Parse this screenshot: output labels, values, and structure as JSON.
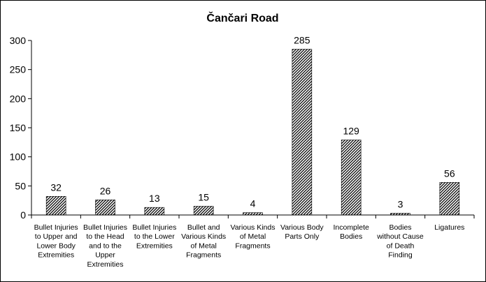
{
  "chart_data": {
    "type": "bar",
    "title": "Čančari Road",
    "xlabel": "",
    "ylabel": "",
    "ylim": [
      0,
      300
    ],
    "yticks": [
      0,
      50,
      100,
      150,
      200,
      250,
      300
    ],
    "grid": false,
    "legend": "none",
    "bar_fill": "diagonal-hatch",
    "colors": {
      "bar_stroke": "#000000",
      "hatch": "#000000",
      "axis": "#000000"
    },
    "categories": [
      [
        "Bullet Injuries",
        "to Upper and",
        "Lower Body",
        "Extremities"
      ],
      [
        "Bullet Injuries",
        "to the Head",
        "and to the",
        "Upper",
        "Extremities"
      ],
      [
        "Bullet Injuries",
        "to the Lower",
        "Extremities"
      ],
      [
        "Bullet and",
        "Various Kinds",
        "of Metal",
        "Fragments"
      ],
      [
        "Various Kinds",
        "of Metal",
        "Fragments"
      ],
      [
        "Various Body",
        "Parts Only"
      ],
      [
        "Incomplete",
        "Bodies"
      ],
      [
        "Bodies",
        "without Cause",
        "of Death",
        "Finding"
      ],
      [
        "Ligatures"
      ]
    ],
    "values": [
      32,
      26,
      13,
      15,
      4,
      285,
      129,
      3,
      56
    ]
  }
}
